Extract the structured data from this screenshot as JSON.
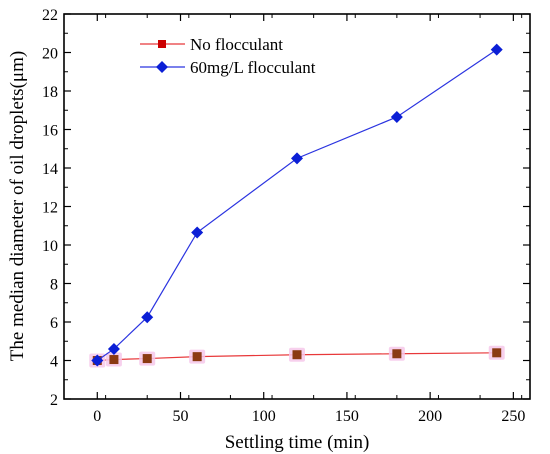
{
  "chart_data": {
    "type": "line",
    "title": "",
    "xlabel": "Settling time  (min)",
    "ylabel": "The median diameter of oil droplets(μm)",
    "xlim": [
      -20,
      260
    ],
    "ylim": [
      2,
      22
    ],
    "xticks": [
      0,
      50,
      100,
      150,
      200,
      250
    ],
    "yticks": [
      2,
      4,
      6,
      8,
      10,
      12,
      14,
      16,
      18,
      20,
      22
    ],
    "grid": false,
    "legend_position": "top-left",
    "series": [
      {
        "name": "No flocculant",
        "marker": "square",
        "line_color": "#e8383a",
        "marker_color": "#8b3a12",
        "marker_halo": "#f6c8ea",
        "x": [
          0,
          10,
          30,
          60,
          120,
          180,
          240
        ],
        "y": [
          4.0,
          4.05,
          4.1,
          4.2,
          4.3,
          4.35,
          4.4
        ]
      },
      {
        "name": "60mg/L flocculant",
        "marker": "diamond",
        "line_color": "#2b34e0",
        "marker_color": "#0b1fd6",
        "x": [
          0,
          10,
          30,
          60,
          120,
          180,
          240
        ],
        "y": [
          4.0,
          4.6,
          6.25,
          10.65,
          14.5,
          16.65,
          20.15
        ]
      }
    ]
  }
}
